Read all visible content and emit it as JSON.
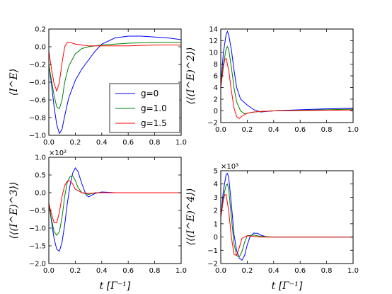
{
  "chart_data": [
    {
      "type": "line",
      "ylabel": "⟨I^E⟩",
      "xlim": [
        0,
        1
      ],
      "ylim": [
        -1.0,
        0.2
      ],
      "xticks": [
        "0.0",
        "0.2",
        "0.4",
        "0.6",
        "0.8",
        "1.0"
      ],
      "yticks": [
        "−1.0",
        "−0.8",
        "−0.6",
        "−0.4",
        "−0.2",
        "0.0",
        "0.2"
      ],
      "ytick_values": [
        -1.0,
        -0.8,
        -0.6,
        -0.4,
        -0.2,
        0.0,
        0.2
      ],
      "legend": {
        "position": "lower-right"
      },
      "series": [
        {
          "name": "g=0",
          "color": "#0000ff",
          "x": [
            0.0,
            0.02,
            0.04,
            0.06,
            0.08,
            0.1,
            0.12,
            0.15,
            0.2,
            0.25,
            0.3,
            0.35,
            0.4,
            0.5,
            0.6,
            0.7,
            0.8,
            0.9,
            1.0
          ],
          "y": [
            -0.2,
            -0.42,
            -0.68,
            -0.88,
            -0.98,
            -0.93,
            -0.78,
            -0.58,
            -0.38,
            -0.25,
            -0.15,
            -0.05,
            0.03,
            0.1,
            0.12,
            0.12,
            0.11,
            0.1,
            0.08
          ]
        },
        {
          "name": "g=1.0",
          "color": "#008000",
          "x": [
            0.0,
            0.02,
            0.04,
            0.06,
            0.08,
            0.1,
            0.12,
            0.15,
            0.2,
            0.25,
            0.3,
            0.4,
            0.5,
            0.6,
            0.8,
            1.0
          ],
          "y": [
            -0.2,
            -0.38,
            -0.55,
            -0.68,
            -0.7,
            -0.6,
            -0.4,
            -0.22,
            -0.08,
            -0.02,
            0.0,
            0.02,
            0.03,
            0.04,
            0.05,
            0.05
          ]
        },
        {
          "name": "g=1.5",
          "color": "#ff0000",
          "x": [
            0.0,
            0.02,
            0.04,
            0.06,
            0.08,
            0.1,
            0.12,
            0.14,
            0.16,
            0.2,
            0.25,
            0.3,
            0.4,
            0.6,
            0.8,
            1.0
          ],
          "y": [
            -0.05,
            -0.25,
            -0.42,
            -0.5,
            -0.4,
            -0.18,
            0.0,
            0.05,
            0.05,
            0.03,
            0.02,
            0.01,
            0.01,
            0.01,
            0.02,
            0.02
          ]
        }
      ]
    },
    {
      "type": "line",
      "ylabel": "⟨⟨(I^E)^2⟩⟩",
      "xlim": [
        0,
        1
      ],
      "ylim": [
        -2,
        14
      ],
      "xticks": [
        "0.0",
        "0.2",
        "0.4",
        "0.6",
        "0.8",
        "1.0"
      ],
      "yticks": [
        "−2",
        "0",
        "2",
        "4",
        "6",
        "8",
        "10",
        "12",
        "14"
      ],
      "ytick_values": [
        -2,
        0,
        2,
        4,
        6,
        8,
        10,
        12,
        14
      ],
      "series": [
        {
          "name": "g=0",
          "color": "#0000ff",
          "x": [
            0.0,
            0.02,
            0.04,
            0.05,
            0.06,
            0.08,
            0.1,
            0.12,
            0.15,
            0.2,
            0.25,
            0.3,
            0.4,
            0.5,
            0.6,
            0.8,
            1.0
          ],
          "y": [
            4.5,
            10.0,
            13.0,
            13.6,
            13.0,
            10.5,
            7.0,
            4.0,
            2.0,
            1.0,
            0.2,
            -0.2,
            0.0,
            0.1,
            0.2,
            0.35,
            0.45
          ]
        },
        {
          "name": "g=1.0",
          "color": "#008000",
          "x": [
            0.0,
            0.02,
            0.04,
            0.05,
            0.06,
            0.08,
            0.1,
            0.12,
            0.15,
            0.18,
            0.2,
            0.25,
            0.3,
            0.4,
            0.6,
            0.8,
            1.0
          ],
          "y": [
            4.5,
            8.0,
            10.5,
            11.0,
            10.5,
            7.5,
            4.0,
            1.5,
            0.0,
            -0.5,
            -0.4,
            -0.2,
            -0.1,
            0.0,
            0.1,
            0.2,
            0.3
          ]
        },
        {
          "name": "g=1.5",
          "color": "#ff0000",
          "x": [
            0.0,
            0.02,
            0.03,
            0.04,
            0.06,
            0.08,
            0.1,
            0.12,
            0.14,
            0.16,
            0.2,
            0.25,
            0.3,
            0.4,
            0.6,
            0.8,
            1.0
          ],
          "y": [
            4.0,
            7.5,
            8.8,
            9.0,
            7.0,
            3.5,
            0.5,
            -1.0,
            -1.3,
            -0.9,
            -0.4,
            -0.2,
            -0.1,
            0.0,
            0.05,
            0.1,
            0.15
          ]
        }
      ]
    },
    {
      "type": "line",
      "ylabel": "⟨⟨(I^E)^3⟩⟩",
      "multiplier": "×10²",
      "xlim": [
        0,
        1
      ],
      "ylim": [
        -2.0,
        1.0
      ],
      "xticks": [
        "0.0",
        "0.2",
        "0.4",
        "0.6",
        "0.8",
        "1.0"
      ],
      "yticks": [
        "−2.0",
        "−1.5",
        "−1.0",
        "−0.5",
        "0.0",
        "0.5",
        "1.0"
      ],
      "ytick_values": [
        -2.0,
        -1.5,
        -1.0,
        -0.5,
        0.0,
        0.5,
        1.0
      ],
      "series": [
        {
          "name": "g=0",
          "color": "#0000ff",
          "x": [
            0.0,
            0.02,
            0.04,
            0.06,
            0.08,
            0.1,
            0.12,
            0.14,
            0.16,
            0.18,
            0.2,
            0.22,
            0.25,
            0.28,
            0.3,
            0.35,
            0.4,
            0.5,
            0.7,
            1.0
          ],
          "y": [
            -0.3,
            -0.8,
            -1.3,
            -1.6,
            -1.65,
            -1.4,
            -0.9,
            -0.3,
            0.2,
            0.55,
            0.7,
            0.6,
            0.25,
            -0.05,
            -0.12,
            -0.02,
            0.02,
            0.0,
            0.0,
            0.0
          ]
        },
        {
          "name": "g=1.0",
          "color": "#008000",
          "x": [
            0.0,
            0.02,
            0.04,
            0.06,
            0.08,
            0.1,
            0.12,
            0.14,
            0.16,
            0.18,
            0.2,
            0.22,
            0.25,
            0.3,
            0.35,
            0.4,
            0.5,
            0.7,
            1.0
          ],
          "y": [
            -0.3,
            -0.75,
            -1.1,
            -1.2,
            -1.1,
            -0.7,
            -0.1,
            0.3,
            0.45,
            0.48,
            0.35,
            0.15,
            0.0,
            -0.05,
            0.0,
            0.0,
            0.0,
            0.0,
            0.0
          ]
        },
        {
          "name": "g=1.5",
          "color": "#ff0000",
          "x": [
            0.0,
            0.02,
            0.04,
            0.06,
            0.08,
            0.1,
            0.12,
            0.14,
            0.16,
            0.18,
            0.2,
            0.25,
            0.3,
            0.4,
            0.6,
            1.0
          ],
          "y": [
            -0.3,
            -0.6,
            -0.85,
            -0.85,
            -0.55,
            -0.1,
            0.2,
            0.33,
            0.33,
            0.25,
            0.1,
            0.0,
            -0.02,
            0.0,
            0.0,
            0.0
          ]
        }
      ]
    },
    {
      "type": "line",
      "ylabel": "⟨⟨(I^E)^4⟩⟩",
      "multiplier": "×10³",
      "xlim": [
        0,
        1
      ],
      "ylim": [
        -2,
        5
      ],
      "xticks": [
        "0.0",
        "0.2",
        "0.4",
        "0.6",
        "0.8",
        "1.0"
      ],
      "yticks": [
        "−2",
        "−1",
        "0",
        "1",
        "2",
        "3",
        "4",
        "5"
      ],
      "ytick_values": [
        -2,
        -1,
        0,
        1,
        2,
        3,
        4,
        5
      ],
      "series": [
        {
          "name": "g=0",
          "color": "#0000ff",
          "x": [
            0.0,
            0.02,
            0.04,
            0.05,
            0.06,
            0.08,
            0.1,
            0.12,
            0.14,
            0.16,
            0.18,
            0.2,
            0.22,
            0.25,
            0.28,
            0.3,
            0.35,
            0.4,
            0.5,
            0.7,
            1.0
          ],
          "y": [
            1.5,
            3.5,
            4.7,
            4.8,
            4.5,
            2.5,
            0.2,
            -1.0,
            -1.6,
            -1.75,
            -1.4,
            -0.6,
            0.0,
            0.3,
            0.28,
            0.15,
            0.0,
            0.0,
            0.0,
            0.0,
            0.0
          ]
        },
        {
          "name": "g=1.0",
          "color": "#008000",
          "x": [
            0.0,
            0.02,
            0.04,
            0.05,
            0.06,
            0.08,
            0.1,
            0.12,
            0.14,
            0.16,
            0.18,
            0.2,
            0.25,
            0.3,
            0.4,
            0.6,
            1.0
          ],
          "y": [
            1.5,
            3.0,
            3.9,
            4.0,
            3.6,
            1.5,
            -0.5,
            -1.4,
            -1.5,
            -1.1,
            -0.4,
            0.1,
            0.15,
            0.05,
            0.0,
            0.0,
            0.0
          ]
        },
        {
          "name": "g=1.5",
          "color": "#ff0000",
          "x": [
            0.0,
            0.02,
            0.03,
            0.04,
            0.06,
            0.08,
            0.1,
            0.12,
            0.14,
            0.16,
            0.2,
            0.25,
            0.3,
            0.4,
            0.6,
            1.0
          ],
          "y": [
            1.5,
            2.8,
            3.2,
            3.2,
            2.0,
            0.0,
            -1.3,
            -1.4,
            -0.8,
            -0.1,
            0.1,
            0.05,
            0.0,
            0.0,
            0.0,
            0.0
          ]
        }
      ]
    }
  ],
  "xlabel": "t  [Γ⁻¹]"
}
